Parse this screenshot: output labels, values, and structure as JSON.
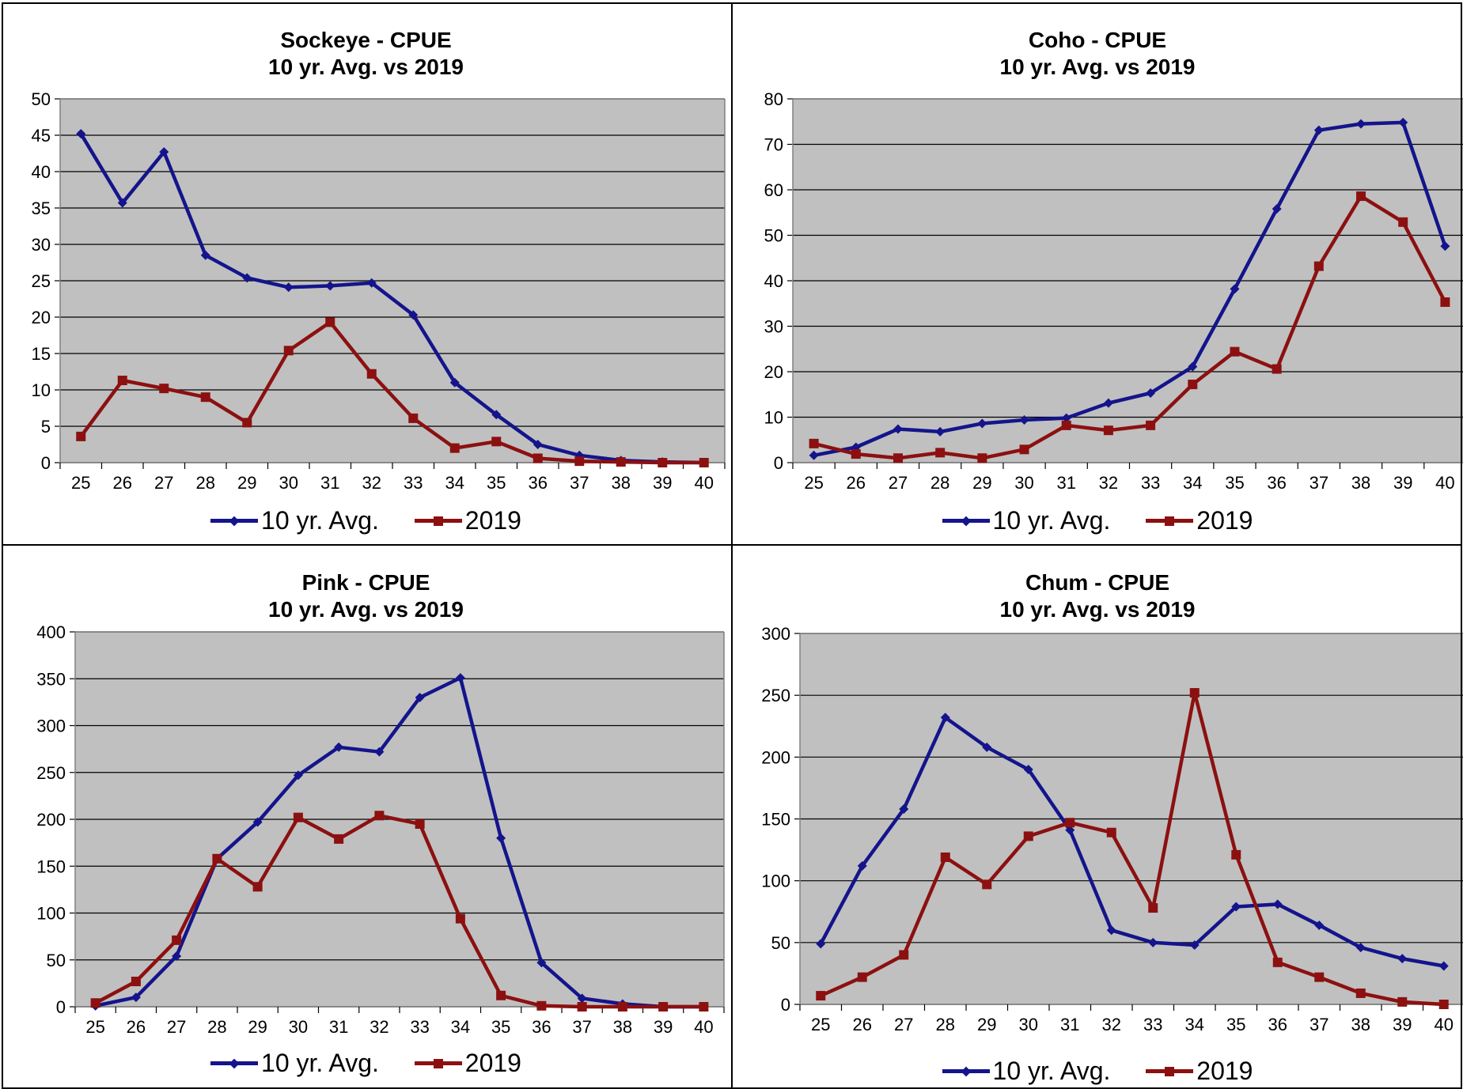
{
  "series_names": [
    "10 yr. Avg.",
    "2019"
  ],
  "colors": {
    "avg": "#14148c",
    "y2019": "#8c1010",
    "plot_bg": "#c0c0c0",
    "grid": "#000000"
  },
  "chart_data": [
    {
      "type": "line",
      "title": "Sockeye - CPUE",
      "subtitle": "10 yr. Avg. vs 2019",
      "categories": [
        "25",
        "26",
        "27",
        "28",
        "29",
        "30",
        "31",
        "32",
        "33",
        "34",
        "35",
        "36",
        "37",
        "38",
        "39",
        "40"
      ],
      "ylim": [
        0,
        50
      ],
      "yticks": [
        0,
        5,
        10,
        15,
        20,
        25,
        30,
        35,
        40,
        45,
        50
      ],
      "grid": true,
      "legend": "bottom",
      "series": [
        {
          "name": "10 yr. Avg.",
          "marker": "diamond",
          "values": [
            45.2,
            35.7,
            42.7,
            28.5,
            25.4,
            24.1,
            24.3,
            24.7,
            20.3,
            11.0,
            6.6,
            2.5,
            1.0,
            0.3,
            0.1,
            0.0
          ]
        },
        {
          "name": "2019",
          "marker": "square",
          "values": [
            3.6,
            11.3,
            10.2,
            9.0,
            5.5,
            15.4,
            19.3,
            12.2,
            6.1,
            2.0,
            2.9,
            0.6,
            0.2,
            0.1,
            0.0,
            0.0
          ]
        }
      ]
    },
    {
      "type": "line",
      "title": "Coho - CPUE",
      "subtitle": "10 yr. Avg. vs 2019",
      "categories": [
        "25",
        "26",
        "27",
        "28",
        "29",
        "30",
        "31",
        "32",
        "33",
        "34",
        "35",
        "36",
        "37",
        "38",
        "39",
        "40"
      ],
      "ylim": [
        0,
        80
      ],
      "yticks": [
        0,
        10,
        20,
        30,
        40,
        50,
        60,
        70,
        80
      ],
      "grid": true,
      "legend": "bottom",
      "series": [
        {
          "name": "10 yr. Avg.",
          "marker": "diamond",
          "values": [
            1.6,
            3.4,
            7.4,
            6.8,
            8.6,
            9.4,
            9.8,
            13.1,
            15.3,
            21.1,
            38.2,
            55.8,
            73.1,
            74.5,
            74.8,
            47.6
          ]
        },
        {
          "name": "2019",
          "marker": "square",
          "values": [
            4.2,
            1.9,
            1.0,
            2.2,
            1.0,
            2.9,
            8.2,
            7.1,
            8.2,
            17.2,
            24.4,
            20.6,
            43.2,
            58.6,
            52.9,
            35.3
          ]
        }
      ]
    },
    {
      "type": "line",
      "title": "Pink - CPUE",
      "subtitle": "10 yr. Avg. vs 2019",
      "categories": [
        "25",
        "26",
        "27",
        "28",
        "29",
        "30",
        "31",
        "32",
        "33",
        "34",
        "35",
        "36",
        "37",
        "38",
        "39",
        "40"
      ],
      "ylim": [
        0,
        400
      ],
      "yticks": [
        0,
        50,
        100,
        150,
        200,
        250,
        300,
        350,
        400
      ],
      "grid": true,
      "legend": "bottom",
      "series": [
        {
          "name": "10 yr. Avg.",
          "marker": "diamond",
          "values": [
            1,
            10,
            54,
            158,
            197,
            247,
            277,
            272,
            330,
            351,
            180,
            47,
            9,
            3,
            0,
            0
          ]
        },
        {
          "name": "2019",
          "marker": "square",
          "values": [
            4,
            27,
            71,
            158,
            128,
            202,
            179,
            204,
            195,
            94,
            12,
            1,
            0,
            0,
            0,
            0
          ]
        }
      ]
    },
    {
      "type": "line",
      "title": "Chum - CPUE",
      "subtitle": "10 yr. Avg. vs 2019",
      "categories": [
        "25",
        "26",
        "27",
        "28",
        "29",
        "30",
        "31",
        "32",
        "33",
        "34",
        "35",
        "36",
        "37",
        "38",
        "39",
        "40"
      ],
      "ylim": [
        0,
        300
      ],
      "yticks": [
        0,
        50,
        100,
        150,
        200,
        250,
        300
      ],
      "grid": true,
      "legend": "bottom",
      "series": [
        {
          "name": "10 yr. Avg.",
          "marker": "diamond",
          "values": [
            49,
            112,
            158,
            232,
            208,
            190,
            141,
            60,
            50,
            48,
            79,
            81,
            64,
            46,
            37,
            31
          ]
        },
        {
          "name": "2019",
          "marker": "square",
          "values": [
            7,
            22,
            40,
            119,
            97,
            136,
            147,
            139,
            78,
            252,
            121,
            34,
            22,
            9,
            2,
            0
          ]
        }
      ]
    }
  ]
}
